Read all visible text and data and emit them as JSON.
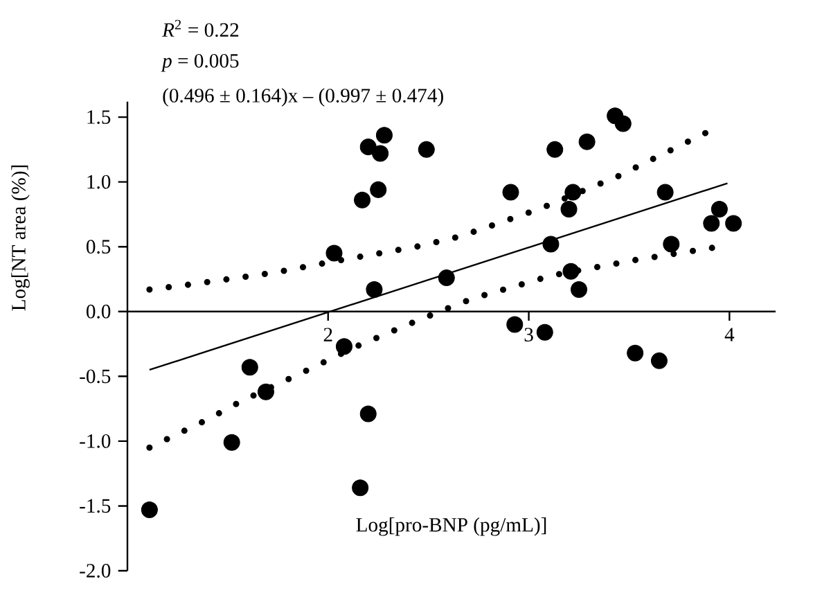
{
  "chart_data": {
    "type": "scatter",
    "xlabel": "Log[pro-BNP (pg/mL)]",
    "ylabel": "Log[NT area (%)]",
    "annotations": [
      "*R*$^{2}$ = 0.22",
      "*p* = 0.005",
      "(0.496 ± 0.164)x – (0.997 ± 0.474)"
    ],
    "xlim": [
      1.0,
      4.23
    ],
    "ylim": [
      -2.0,
      1.62
    ],
    "xticks": [
      2,
      3,
      4
    ],
    "yticks": [
      {
        "value": -2,
        "label": "-2.0"
      },
      -1.5,
      {
        "value": -1,
        "label": "-1.0"
      },
      -0.5,
      {
        "value": 0,
        "label": "0.0"
      },
      0.5,
      {
        "value": 1,
        "label": "1.0"
      },
      1.5
    ],
    "grid": false,
    "series": [
      {
        "color": "#000000",
        "x": [
          2.03,
          2.17,
          2.2,
          2.26,
          2.28,
          2.25,
          2.49,
          2.23,
          2.59,
          2.08,
          1.61,
          1.69,
          2.2,
          1.52,
          1.11,
          2.16,
          3.13,
          3.29,
          3.43,
          3.47,
          2.91,
          3.22,
          3.2,
          3.68,
          3.95,
          3.91,
          4.02,
          3.11,
          3.71,
          3.21,
          3.25,
          2.93,
          3.08,
          3.53,
          3.65
        ],
        "values": [
          0.45,
          0.86,
          1.27,
          1.22,
          1.36,
          0.94,
          1.25,
          0.17,
          0.26,
          -0.27,
          -0.43,
          -0.62,
          -0.79,
          -1.01,
          -1.53,
          -1.36,
          1.25,
          1.31,
          1.51,
          1.45,
          0.92,
          0.92,
          0.79,
          0.92,
          0.79,
          0.68,
          0.68,
          0.52,
          0.52,
          0.31,
          0.17,
          -0.1,
          -0.16,
          -0.32,
          -0.38
        ]
      },
      {
        "type": "line",
        "color": "#000000",
        "line_style": "solid",
        "x": [
          1.11,
          3.99
        ],
        "values": [
          -0.45,
          0.99
        ]
      },
      {
        "type": "line",
        "color": "#000000",
        "line_style": "dotted",
        "x": [
          1.11,
          1.32,
          1.73,
          2.04,
          2.44,
          2.66,
          3.05,
          3.44,
          3.91
        ],
        "values": [
          0.17,
          0.21,
          0.3,
          0.39,
          0.5,
          0.58,
          0.79,
          1.04,
          1.4
        ]
      },
      {
        "type": "line",
        "color": "#000000",
        "line_style": "dotted",
        "x": [
          1.11,
          1.39,
          1.57,
          1.86,
          2.14,
          2.43,
          2.62,
          2.72,
          3.12,
          3.54,
          3.95
        ],
        "values": [
          -1.05,
          -0.84,
          -0.69,
          -0.48,
          -0.27,
          -0.08,
          0.04,
          0.1,
          0.28,
          0.4,
          0.5
        ]
      }
    ]
  }
}
